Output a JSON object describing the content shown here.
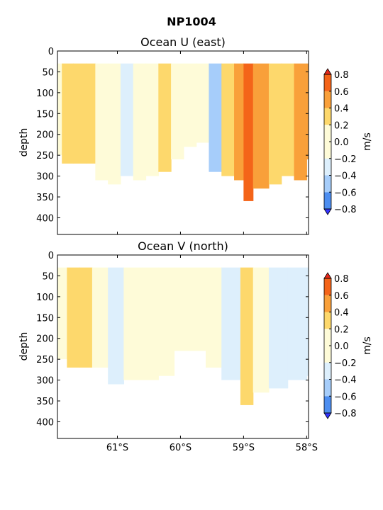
{
  "figure": {
    "title": "NP1004"
  },
  "colorbar": {
    "levels": [
      -0.8,
      -0.6,
      -0.4,
      -0.2,
      0.0,
      0.2,
      0.4,
      0.6,
      0.8
    ],
    "tick_labels": [
      "−0.8",
      "−0.6",
      "−0.4",
      "−0.2",
      "0.0",
      "0.2",
      "0.4",
      "0.6",
      "0.8"
    ],
    "colors": [
      "#3333ff",
      "#4d8ef0",
      "#a6cdfa",
      "#ddeffc",
      "#fefbd8",
      "#fdd86c",
      "#f9a03a",
      "#f46419",
      "#e8281a"
    ],
    "unit_label": "m/s"
  },
  "chart_data": [
    {
      "type": "heatmap",
      "title": "Ocean U (east)",
      "xlabel": "",
      "ylabel": "depth",
      "x_ticks": [
        -61,
        -60,
        -59,
        -58
      ],
      "x_tick_labels": [
        "61°S",
        "60°S",
        "59°S",
        "58°S"
      ],
      "show_x_tick_labels": false,
      "xlim": [
        -61.95,
        -57.97
      ],
      "ylim": [
        440,
        0
      ],
      "y_ticks": [
        0,
        50,
        100,
        150,
        200,
        250,
        300,
        350,
        400
      ],
      "y_tick_labels": [
        "0",
        "50",
        "100",
        "150",
        "200",
        "250",
        "300",
        "350",
        "400"
      ],
      "columns": [
        {
          "lat": -61.95,
          "bottom": 250,
          "top_value": 0.1
        },
        {
          "lat": -61.88,
          "bottom": 270,
          "top_value": 0.25
        },
        {
          "lat": -61.7,
          "bottom": 270,
          "top_value": 0.3
        },
        {
          "lat": -61.5,
          "bottom": 270,
          "top_value": 0.2
        },
        {
          "lat": -61.35,
          "bottom": 310,
          "top_value": 0.1
        },
        {
          "lat": -61.15,
          "bottom": 320,
          "top_value": 0.1
        },
        {
          "lat": -60.95,
          "bottom": 300,
          "top_value": -0.05
        },
        {
          "lat": -60.75,
          "bottom": 310,
          "top_value": 0.1
        },
        {
          "lat": -60.55,
          "bottom": 300,
          "top_value": 0.15
        },
        {
          "lat": -60.35,
          "bottom": 290,
          "top_value": 0.3
        },
        {
          "lat": -60.15,
          "bottom": 260,
          "top_value": 0.1
        },
        {
          "lat": -59.95,
          "bottom": 230,
          "top_value": 0.1
        },
        {
          "lat": -59.75,
          "bottom": 220,
          "top_value": 0.05
        },
        {
          "lat": -59.55,
          "bottom": 290,
          "top_value": -0.35
        },
        {
          "lat": -59.35,
          "bottom": 300,
          "top_value": 0.3
        },
        {
          "lat": -59.15,
          "bottom": 310,
          "top_value": 0.5
        },
        {
          "lat": -59.0,
          "bottom": 360,
          "top_value": 0.65
        },
        {
          "lat": -58.85,
          "bottom": 330,
          "top_value": 0.45
        },
        {
          "lat": -58.6,
          "bottom": 320,
          "top_value": 0.25
        },
        {
          "lat": -58.4,
          "bottom": 300,
          "top_value": 0.3
        },
        {
          "lat": -58.2,
          "bottom": 310,
          "top_value": 0.45
        },
        {
          "lat": -58.0,
          "bottom": 260,
          "top_value": 0.5
        }
      ]
    },
    {
      "type": "heatmap",
      "title": "Ocean V (north)",
      "xlabel": "",
      "ylabel": "depth",
      "x_ticks": [
        -61,
        -60,
        -59,
        -58
      ],
      "x_tick_labels": [
        "61°S",
        "60°S",
        "59°S",
        "58°S"
      ],
      "show_x_tick_labels": true,
      "xlim": [
        -61.95,
        -57.97
      ],
      "ylim": [
        440,
        0
      ],
      "y_ticks": [
        0,
        50,
        100,
        150,
        200,
        250,
        300,
        350,
        400
      ],
      "y_tick_labels": [
        "0",
        "50",
        "100",
        "150",
        "200",
        "250",
        "300",
        "350",
        "400"
      ],
      "columns": [
        {
          "lat": -61.95,
          "bottom": 250,
          "top_value": 0.1
        },
        {
          "lat": -61.8,
          "bottom": 270,
          "top_value": 0.3
        },
        {
          "lat": -61.6,
          "bottom": 270,
          "top_value": 0.25
        },
        {
          "lat": -61.4,
          "bottom": 270,
          "top_value": 0.15
        },
        {
          "lat": -61.15,
          "bottom": 310,
          "top_value": -0.05
        },
        {
          "lat": -60.9,
          "bottom": 300,
          "top_value": 0.1
        },
        {
          "lat": -60.6,
          "bottom": 300,
          "top_value": 0.05
        },
        {
          "lat": -60.35,
          "bottom": 290,
          "top_value": 0.1
        },
        {
          "lat": -60.1,
          "bottom": 230,
          "top_value": 0.15
        },
        {
          "lat": -59.9,
          "bottom": 230,
          "top_value": 0.05
        },
        {
          "lat": -59.6,
          "bottom": 270,
          "top_value": 0.1
        },
        {
          "lat": -59.35,
          "bottom": 300,
          "top_value": -0.05
        },
        {
          "lat": -59.05,
          "bottom": 360,
          "top_value": 0.25
        },
        {
          "lat": -58.85,
          "bottom": 330,
          "top_value": 0.1
        },
        {
          "lat": -58.6,
          "bottom": 320,
          "top_value": -0.1
        },
        {
          "lat": -58.3,
          "bottom": 300,
          "top_value": -0.1
        },
        {
          "lat": -58.0,
          "bottom": 290,
          "top_value": -0.1
        }
      ]
    }
  ]
}
